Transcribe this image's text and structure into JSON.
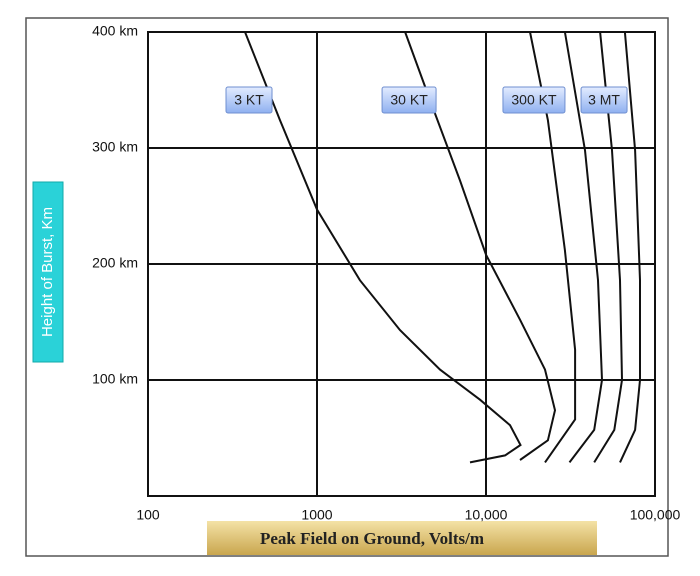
{
  "chart_data": {
    "type": "line",
    "xlabel": "Peak Field on Ground, Volts/m",
    "ylabel": "Height of Burst, Km",
    "xscale": "log",
    "xlim": [
      100,
      100000
    ],
    "ylim": [
      0,
      400
    ],
    "xticks": [
      100,
      1000,
      {
        "value": 10000,
        "label": "10,000"
      },
      {
        "value": 100000,
        "label": "100,000"
      }
    ],
    "yticks": [
      {
        "value": 100,
        "label": "100 km"
      },
      {
        "value": 200,
        "label": "200 km"
      },
      {
        "value": 300,
        "label": "300 km"
      },
      {
        "value": 400,
        "label": "400 km"
      }
    ],
    "grid": true,
    "color": "#111111",
    "series": [
      {
        "name": "3 KT",
        "x": [
          375,
          604,
          1000,
          1795,
          3097,
          5345,
          9210,
          13870,
          16000,
          12980,
          8040
        ],
        "values": [
          400,
          324,
          247,
          186,
          143,
          109,
          83,
          61,
          44,
          35,
          29
        ]
      },
      {
        "name": "30 KT",
        "x": [
          3320,
          4670,
          7020,
          10000,
          15900,
          22340,
          25600,
          23240,
          15900
        ],
        "values": [
          400,
          341,
          272,
          208,
          152,
          109,
          74,
          48,
          31
        ]
      },
      {
        "name": "300 KT",
        "x": [
          18200,
          23240,
          29300,
          33650,
          33650,
          22340
        ],
        "values": [
          400,
          324,
          212,
          126,
          66,
          29
        ]
      },
      {
        "x": [
          29300,
          38550,
          46000,
          48600,
          43700,
          31200
        ],
        "values": [
          400,
          298,
          186,
          100,
          57,
          29
        ]
      },
      {
        "name": "3 MT",
        "x": [
          47300,
          55700,
          62100,
          63800,
          57400,
          43700
        ],
        "values": [
          400,
          298,
          186,
          100,
          57,
          29
        ]
      },
      {
        "x": [
          66400,
          76200,
          81500,
          81500,
          76200,
          62100
        ],
        "values": [
          400,
          298,
          186,
          100,
          57,
          29
        ]
      }
    ]
  }
}
